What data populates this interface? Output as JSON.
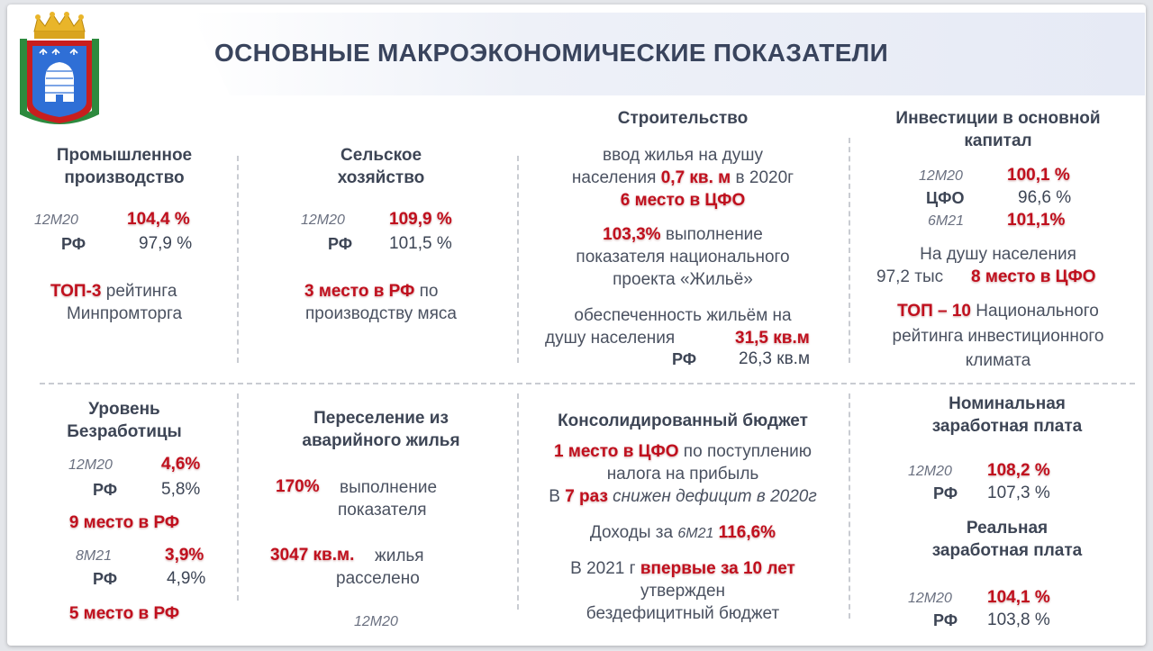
{
  "title": "ОСНОВНЫЕ МАКРОЭКОНОМИЧЕСКИЕ ПОКАЗАТЕЛИ",
  "industry": {
    "heading1": "Промышленное",
    "heading2": "производство",
    "label": "12М20",
    "value": "104,4 %",
    "rf_label": "РФ",
    "rf_value": "97,9 %",
    "rank": "ТОП-3",
    "rank_text": " рейтинга",
    "rank_text2": "Минпромторга"
  },
  "agriculture": {
    "heading1": "Сельское",
    "heading2": "хозяйство",
    "label": "12М20",
    "value": "109,9 %",
    "rf_label": "РФ",
    "rf_value": "101,5 %",
    "rank": "3 место в РФ",
    "rank_text": " по",
    "rank_text2": "производству мяса"
  },
  "construction": {
    "heading": "Строительство",
    "line1": "ввод жилья на душу",
    "line2_a": "населения ",
    "line2_val": "0,7 кв. м",
    "line2_b": " в 2020г",
    "line3": "6 место в ЦФО",
    "line4_val": "103,3%",
    "line4_b": " выполнение",
    "line5": "показателя национального",
    "line6": "проекта «Жильё»",
    "line7": "обеспеченность жильём на",
    "line8_a": "душу населения",
    "line8_val": "31,5 кв.м",
    "rf_label": "РФ",
    "rf_value": "26,3 кв.м"
  },
  "investment": {
    "heading1": "Инвестиции в основной",
    "heading2": "капитал",
    "label1": "12М20",
    "value1": "100,1 %",
    "cfo_label": "ЦФО",
    "cfo_value": "96,6 %",
    "label2": "6М21",
    "value2": "101,1%",
    "line1": "На душу населения",
    "line2_a": "97,2 тыс",
    "line2_val": "8 место в ЦФО",
    "line3_val": "ТОП – 10",
    "line3_b": " Национального",
    "line4": "рейтинга инвестиционного",
    "line5": "климата"
  },
  "unemployment": {
    "heading1": "Уровень",
    "heading2": "Безработицы",
    "label1": "12М20",
    "value1": "4,6%",
    "rf1_label": "РФ",
    "rf1_value": "5,8%",
    "rank1": "9 место в РФ",
    "label2": "8М21",
    "value2": "3,9%",
    "rf2_label": "РФ",
    "rf2_value": "4,9%",
    "rank2": "5 место в РФ"
  },
  "resettlement": {
    "heading1": "Переселение из",
    "heading2": "аварийного жилья",
    "value1": "170%",
    "text1a": "выполнение",
    "text1b": "показателя",
    "value2": "3047 кв.м.",
    "text2a": "жилья",
    "text2b": "расселено",
    "label": "12М20"
  },
  "budget": {
    "heading": "Консолидированный бюджет",
    "line1_val": "1 место в ЦФО",
    "line1_b": " по поступлению",
    "line2": "налога на прибыль",
    "line3_a": "В ",
    "line3_val": "7 раз",
    "line3_b": " снижен дефицит в 2020г",
    "line4_a": "Доходы за ",
    "line4_lbl": "6М21",
    "line4_val": "116,6%",
    "line5_a": "В 2021 г ",
    "line5_val": "впервые за 10 лет",
    "line6": "утвержден",
    "line7": "бездефицитный бюджет"
  },
  "wages": {
    "nominal1": "Номинальная",
    "nominal2": "заработная плата",
    "n_label": "12М20",
    "n_value": "108,2 %",
    "n_rf_label": "РФ",
    "n_rf_value": "107,3 %",
    "real1": "Реальная",
    "real2": "заработная плата",
    "r_label": "12М20",
    "r_value": "104,1 %",
    "r_rf_label": "РФ",
    "r_rf_value": "103,8 %"
  }
}
